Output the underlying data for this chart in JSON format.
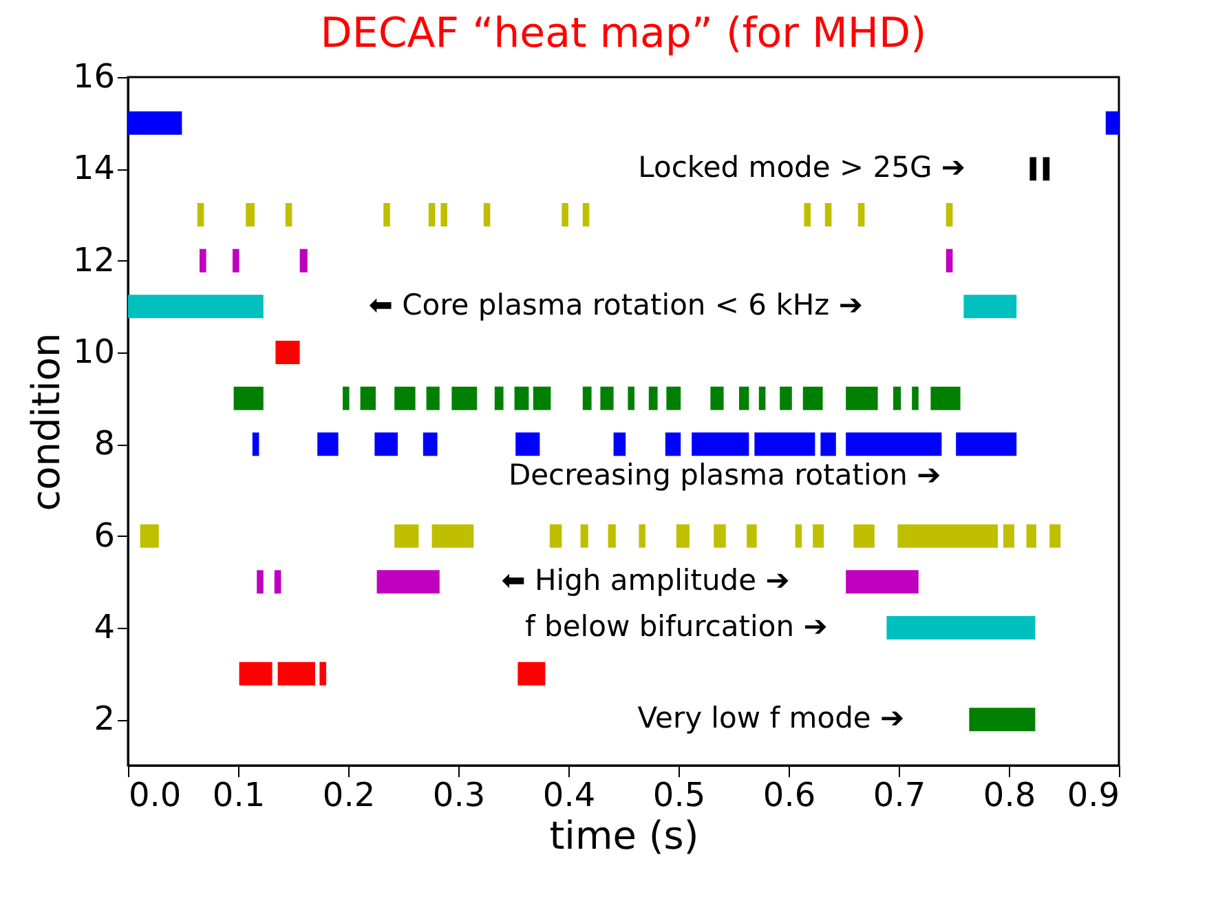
{
  "chart_data": {
    "type": "line",
    "title": "DECAF “heat map” (for MHD)",
    "xlabel": "time (s)",
    "ylabel": "condition",
    "xlim": [
      0,
      0.9
    ],
    "xticks": [
      {
        "value": 0,
        "label": "0.0"
      },
      0.1,
      0.2,
      0.3,
      0.4,
      0.5,
      0.6,
      0.7,
      0.8,
      0.9
    ],
    "ylim": [
      1,
      16
    ],
    "yticks": [
      2,
      4,
      6,
      8,
      10,
      12,
      14,
      16
    ],
    "grid": false,
    "line_style": "solid",
    "marker": "none",
    "series": [
      {
        "color": "#0000ff",
        "x": [
          0,
          0.049,
          null,
          0.888,
          0.9
        ],
        "values": [
          15,
          15,
          null,
          15,
          15
        ]
      },
      {
        "color": "#000000",
        "x": [
          0.819,
          0.825,
          null,
          0.831,
          0.837
        ],
        "values": [
          14,
          14,
          null,
          14,
          14
        ]
      },
      {
        "color": "#bfbf00",
        "x": [
          0.063,
          0.069,
          null,
          0.107,
          0.115,
          null,
          0.143,
          0.149,
          null,
          0.232,
          0.238,
          null,
          0.273,
          0.279,
          null,
          0.284,
          0.29,
          null,
          0.323,
          0.329,
          null,
          0.394,
          0.4,
          null,
          0.413,
          0.419,
          null,
          0.614,
          0.62,
          null,
          0.633,
          0.639,
          null,
          0.663,
          0.669,
          null,
          0.743,
          0.749
        ],
        "values": [
          13,
          13,
          null,
          13,
          13,
          null,
          13,
          13,
          null,
          13,
          13,
          null,
          13,
          13,
          null,
          13,
          13,
          null,
          13,
          13,
          null,
          13,
          13,
          null,
          13,
          13,
          null,
          13,
          13,
          null,
          13,
          13,
          null,
          13,
          13,
          null,
          13,
          13
        ]
      },
      {
        "color": "#bf00bf",
        "x": [
          0.065,
          0.071,
          null,
          0.095,
          0.101,
          null,
          0.156,
          0.163,
          null,
          0.743,
          0.749
        ],
        "values": [
          12,
          12,
          null,
          12,
          12,
          null,
          12,
          12,
          null,
          12,
          12
        ]
      },
      {
        "color": "#00bfbf",
        "x": [
          0,
          0.123,
          null,
          0.759,
          0.807
        ],
        "values": [
          11,
          11,
          null,
          11,
          11
        ]
      },
      {
        "color": "#ff0000",
        "x": [
          0.134,
          0.156
        ],
        "values": [
          10,
          10
        ]
      },
      {
        "color": "#008000",
        "x": [
          0.096,
          0.123,
          null,
          0.195,
          0.201,
          null,
          0.211,
          0.225,
          null,
          0.242,
          0.261,
          null,
          0.271,
          0.283,
          null,
          0.294,
          0.317,
          null,
          0.333,
          0.341,
          null,
          0.351,
          0.364,
          null,
          0.368,
          0.384,
          null,
          0.413,
          0.421,
          null,
          0.429,
          0.441,
          null,
          0.454,
          0.46,
          null,
          0.473,
          0.481,
          null,
          0.489,
          0.502,
          null,
          0.529,
          0.541,
          null,
          0.555,
          0.564,
          null,
          0.573,
          0.579,
          null,
          0.592,
          0.603,
          null,
          0.613,
          0.631,
          null,
          0.652,
          0.681,
          null,
          0.695,
          0.702,
          null,
          0.712,
          0.718,
          null,
          0.729,
          0.756
        ],
        "values": [
          9,
          9,
          null,
          9,
          9,
          null,
          9,
          9,
          null,
          9,
          9,
          null,
          9,
          9,
          null,
          9,
          9,
          null,
          9,
          9,
          null,
          9,
          9,
          null,
          9,
          9,
          null,
          9,
          9,
          null,
          9,
          9,
          null,
          9,
          9,
          null,
          9,
          9,
          null,
          9,
          9,
          null,
          9,
          9,
          null,
          9,
          9,
          null,
          9,
          9,
          null,
          9,
          9,
          null,
          9,
          9,
          null,
          9,
          9,
          null,
          9,
          9,
          null,
          9,
          9,
          null,
          9,
          9
        ]
      },
      {
        "color": "#0000ff",
        "x": [
          0.113,
          0.119,
          null,
          0.172,
          0.191,
          null,
          0.224,
          0.245,
          null,
          0.268,
          0.281,
          null,
          0.352,
          0.374,
          null,
          0.441,
          0.452,
          null,
          0.488,
          0.502,
          null,
          0.512,
          0.564,
          null,
          0.569,
          0.624,
          null,
          0.629,
          0.643,
          null,
          0.652,
          0.739,
          null,
          0.752,
          0.807
        ],
        "values": [
          8,
          8,
          null,
          8,
          8,
          null,
          8,
          8,
          null,
          8,
          8,
          null,
          8,
          8,
          null,
          8,
          8,
          null,
          8,
          8,
          null,
          8,
          8,
          null,
          8,
          8,
          null,
          8,
          8,
          null,
          8,
          8,
          null,
          8,
          8
        ]
      },
      {
        "color": "#bfbf00",
        "x": [
          0.011,
          0.028,
          null,
          0.242,
          0.264,
          null,
          0.276,
          0.314,
          null,
          0.383,
          0.394,
          null,
          0.411,
          0.418,
          null,
          0.436,
          0.443,
          null,
          0.464,
          0.47,
          null,
          0.498,
          0.51,
          null,
          0.532,
          0.543,
          null,
          0.562,
          0.571,
          null,
          0.606,
          0.612,
          null,
          0.622,
          0.632,
          null,
          0.659,
          0.678,
          null,
          0.699,
          0.79,
          null,
          0.795,
          0.805,
          null,
          0.816,
          0.825,
          null,
          0.837,
          0.847
        ],
        "values": [
          6,
          6,
          null,
          6,
          6,
          null,
          6,
          6,
          null,
          6,
          6,
          null,
          6,
          6,
          null,
          6,
          6,
          null,
          6,
          6,
          null,
          6,
          6,
          null,
          6,
          6,
          null,
          6,
          6,
          null,
          6,
          6,
          null,
          6,
          6,
          null,
          6,
          6,
          null,
          6,
          6,
          null,
          6,
          6,
          null,
          6,
          6,
          null,
          6,
          6
        ]
      },
      {
        "color": "#bf00bf",
        "x": [
          0.117,
          0.123,
          null,
          0.133,
          0.139,
          null,
          0.226,
          0.283,
          null,
          0.652,
          0.718
        ],
        "values": [
          5,
          5,
          null,
          5,
          5,
          null,
          5,
          5,
          null,
          5,
          5
        ]
      },
      {
        "color": "#00bfbf",
        "x": [
          0.689,
          0.824
        ],
        "values": [
          4,
          4
        ]
      },
      {
        "color": "#ff0000",
        "x": [
          0.101,
          0.131,
          null,
          0.136,
          0.17,
          null,
          0.174,
          0.18,
          null,
          0.354,
          0.379
        ],
        "values": [
          3,
          3,
          null,
          3,
          3,
          null,
          3,
          3,
          null,
          3,
          3
        ]
      },
      {
        "color": "#008000",
        "x": [
          0.764,
          0.824
        ],
        "values": [
          2,
          2
        ]
      }
    ],
    "annotations": [
      "Locked mode > 25G ➔",
      "⬅ Core plasma rotation  < 6 kHz ➔",
      "Decreasing plasma rotation ➔",
      "⬅ High amplitude ➔",
      "f below bifurcation ➔",
      "Very low f mode ➔"
    ]
  }
}
